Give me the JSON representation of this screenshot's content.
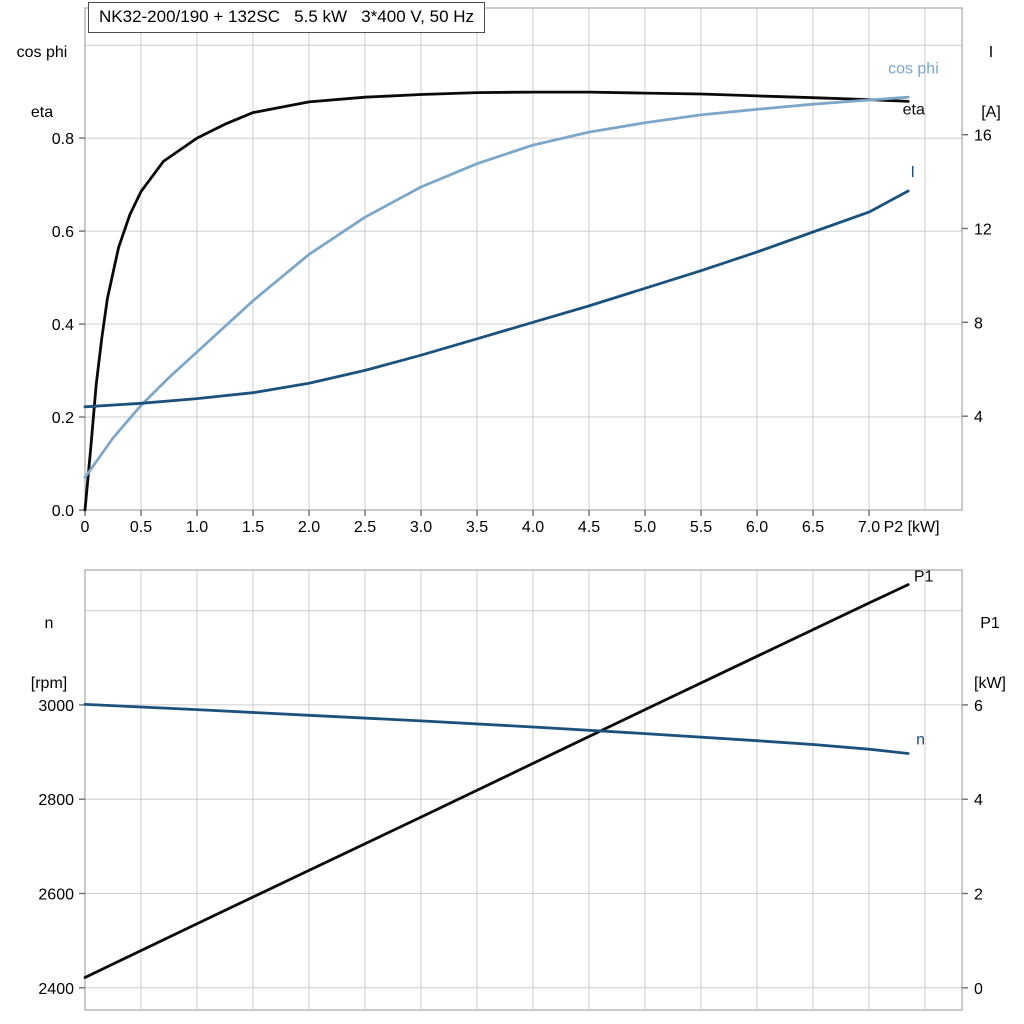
{
  "header": {
    "title": "NK32-200/190 + 132SC   5.5 kW   3*400 V, 50 Hz"
  },
  "axis_titles": {
    "top_left_line1": "cos phi",
    "top_left_line2": "eta",
    "top_right_line1": "I",
    "top_right_line2": "[A]",
    "bottom_left_line1": "n",
    "bottom_left_line2": "[rpm]",
    "bottom_right_line1": "P1",
    "bottom_right_line2": "[kW]"
  },
  "colors": {
    "cos_phi": "#7da7c9",
    "eta": "#0a0a0a",
    "current": "#1a527c",
    "speed": "#1a527c",
    "p1": "#0a0a0a",
    "grid": "#cdcdcd",
    "border": "#a6a6a6",
    "tick": "#6e6e6e",
    "text": "#000000"
  },
  "chart_data": [
    {
      "type": "line",
      "title": "NK32-200/190 + 132SC   5.5 kW   3*400 V, 50 Hz",
      "xlabel": "P2 [kW]",
      "ylabel_left": "cos phi / eta",
      "ylabel_right": "I [A]",
      "xlim": [
        0,
        7.83
      ],
      "ylim_left": [
        0,
        1.08
      ],
      "ylim_right": [
        0,
        21.4
      ],
      "xgrid": [
        0,
        0.5,
        1,
        1.5,
        2,
        2.5,
        3,
        3.5,
        4,
        4.5,
        5,
        5.5,
        6,
        6.5,
        7,
        7.5
      ],
      "xtick_values": [
        0,
        0.5,
        1,
        1.5,
        2,
        2.5,
        3,
        3.5,
        4,
        4.5,
        5,
        5.5,
        6,
        6.5,
        7
      ],
      "xtick_labels": [
        "0",
        "0.5",
        "1.0",
        "1.5",
        "2.0",
        "2.5",
        "3.0",
        "3.5",
        "4.0",
        "4.5",
        "5.0",
        "5.5",
        "6.0",
        "6.5",
        "7.0"
      ],
      "ygrid_left": [
        0.2,
        0.4,
        0.6,
        0.8,
        1.0
      ],
      "ytick_left_values": [
        0,
        0.2,
        0.4,
        0.6,
        0.8
      ],
      "ytick_left_labels": [
        "0.0",
        "0.2",
        "0.4",
        "0.6",
        "0.8"
      ],
      "ytick_right_values": [
        4,
        8,
        12,
        16
      ],
      "ytick_right_labels": [
        "4",
        "8",
        "12",
        "16"
      ],
      "series": [
        {
          "name": "eta",
          "axis": "left",
          "color": "#0a0a0a",
          "x": [
            0,
            0.05,
            0.1,
            0.15,
            0.2,
            0.3,
            0.4,
            0.5,
            0.7,
            1.0,
            1.25,
            1.5,
            2.0,
            2.5,
            3.0,
            3.5,
            4.0,
            4.5,
            5.0,
            5.5,
            6.0,
            6.5,
            7.0,
            7.35
          ],
          "y": [
            0,
            0.13,
            0.27,
            0.37,
            0.455,
            0.565,
            0.635,
            0.685,
            0.75,
            0.8,
            0.83,
            0.855,
            0.878,
            0.888,
            0.894,
            0.898,
            0.899,
            0.899,
            0.897,
            0.895,
            0.891,
            0.887,
            0.883,
            0.879
          ]
        },
        {
          "name": "cos phi",
          "axis": "left",
          "color": "#7da7c9",
          "x": [
            0,
            0.25,
            0.5,
            0.75,
            1.0,
            1.25,
            1.5,
            1.75,
            2.0,
            2.5,
            3.0,
            3.5,
            4.0,
            4.5,
            5.0,
            5.5,
            6.0,
            6.5,
            7.0,
            7.35
          ],
          "y": [
            0.07,
            0.155,
            0.225,
            0.285,
            0.34,
            0.395,
            0.45,
            0.5,
            0.55,
            0.63,
            0.695,
            0.745,
            0.785,
            0.813,
            0.833,
            0.85,
            0.862,
            0.873,
            0.882,
            0.888
          ]
        },
        {
          "name": "I",
          "axis": "right",
          "color": "#1a527c",
          "x": [
            0,
            0.5,
            1.0,
            1.5,
            2.0,
            2.5,
            3.0,
            3.5,
            4.0,
            4.5,
            5.0,
            5.5,
            6.0,
            6.5,
            7.0,
            7.35
          ],
          "y": [
            4.4,
            4.55,
            4.75,
            5.0,
            5.4,
            5.95,
            6.6,
            7.3,
            8.0,
            8.7,
            9.45,
            10.2,
            11.0,
            11.85,
            12.7,
            13.6
          ]
        }
      ],
      "annotations": [
        {
          "text": "cos phi",
          "x": 7.17,
          "y": 0.95,
          "axis": "left",
          "color": "#7da7c9"
        },
        {
          "text": "eta",
          "x": 7.3,
          "y": 0.862,
          "axis": "left",
          "color": "#0a0a0a"
        },
        {
          "text": "I",
          "x": 7.37,
          "y": 14.4,
          "axis": "right",
          "color": "#1a527c"
        }
      ]
    },
    {
      "type": "line",
      "title": "",
      "xlabel": "",
      "ylabel_left": "n [rpm]",
      "ylabel_right": "P1 [kW]",
      "xlim": [
        0,
        7.83
      ],
      "ylim_left": [
        2353,
        3286
      ],
      "ylim_right": [
        -0.47,
        8.86
      ],
      "xgrid": [
        0,
        0.5,
        1,
        1.5,
        2,
        2.5,
        3,
        3.5,
        4,
        4.5,
        5,
        5.5,
        6,
        6.5,
        7,
        7.5
      ],
      "xtick_values": [],
      "xtick_labels": [],
      "ygrid_left": [
        2400,
        2600,
        2800,
        3000,
        3200
      ],
      "ytick_left_values": [
        2400,
        2600,
        2800,
        3000
      ],
      "ytick_left_labels": [
        "2400",
        "2600",
        "2800",
        "3000"
      ],
      "ytick_right_values": [
        0,
        2,
        4,
        6
      ],
      "ytick_right_labels": [
        "0",
        "2",
        "4",
        "6"
      ],
      "series": [
        {
          "name": "P1",
          "axis": "right",
          "color": "#0a0a0a",
          "x": [
            0,
            1,
            2,
            3,
            4,
            5,
            6,
            7,
            7.35
          ],
          "y": [
            0.22,
            1.36,
            2.49,
            3.62,
            4.76,
            5.9,
            7.03,
            8.16,
            8.55
          ]
        },
        {
          "name": "n",
          "axis": "left",
          "color": "#1a527c",
          "x": [
            0,
            1,
            2,
            3,
            4,
            5,
            6,
            6.5,
            7,
            7.35
          ],
          "y": [
            3001,
            2990,
            2978,
            2966,
            2953,
            2939,
            2924,
            2916,
            2906,
            2897
          ]
        }
      ],
      "annotations": [
        {
          "text": "P1",
          "x": 7.4,
          "y": 8.72,
          "axis": "right",
          "color": "#0a0a0a"
        },
        {
          "text": "n",
          "x": 7.42,
          "y": 2927,
          "axis": "left",
          "color": "#1a527c"
        }
      ]
    }
  ]
}
